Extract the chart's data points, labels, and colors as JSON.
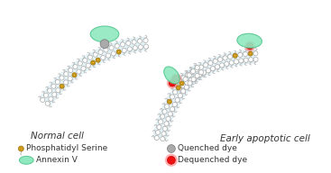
{
  "background_color": "#ffffff",
  "membrane_color": "#cce8f0",
  "lipid_head_color": "#ffffff",
  "lipid_head_edge": "#aaaaaa",
  "lipid_tail_color": "#bbbbbb",
  "ps_head_color": "#d4a017",
  "ps_head_edge": "#9a7010",
  "annexin_color": "#90e8c0",
  "annexin_edge": "#55c890",
  "quenched_color": "#aaaaaa",
  "quenched_edge": "#777777",
  "dequenched_color": "#ee1111",
  "dequenched_edge": "#cc0000",
  "dequenched_glow": "#ff6666",
  "text_color": "#333333",
  "label_fontsize": 6.5,
  "title_fontsize": 7.5,
  "normal_cell_label": "Normal cell",
  "apoptotic_cell_label": "Early apoptotic cell",
  "legend_ps": "Phosphatidyl Serine",
  "legend_annexin": "Annexin V",
  "legend_quenched": "Quenched dye",
  "legend_dequenched": "Dequenched dye"
}
